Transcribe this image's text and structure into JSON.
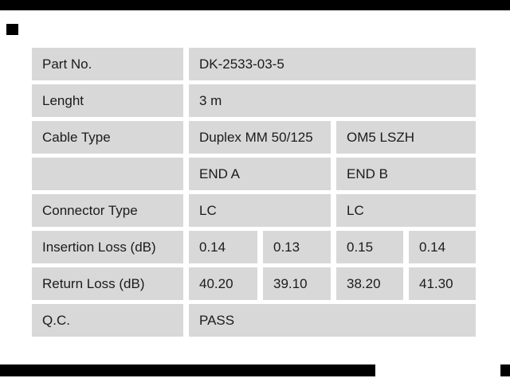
{
  "decor": {
    "bar_color": "#000000"
  },
  "table": {
    "cell_background": "#d8d8d8",
    "gap_background": "#ffffff",
    "text_color": "#1b1b1b",
    "rows": [
      {
        "label": "Part No.",
        "cells": [
          {
            "text": "DK-2533-03-5",
            "span": 4
          }
        ]
      },
      {
        "label": "Lenght",
        "cells": [
          {
            "text": "3 m",
            "span": 4
          }
        ]
      },
      {
        "label": "Cable Type",
        "cells": [
          {
            "text": "Duplex MM 50/125",
            "span": 2
          },
          {
            "text": "OM5 LSZH",
            "span": 2
          }
        ]
      },
      {
        "label": "",
        "cells": [
          {
            "text": "END A",
            "span": 2
          },
          {
            "text": "END B",
            "span": 2
          }
        ]
      },
      {
        "label": "Connector Type",
        "cells": [
          {
            "text": "LC",
            "span": 2
          },
          {
            "text": "LC",
            "span": 2
          }
        ]
      },
      {
        "label": "Insertion Loss (dB)",
        "cells": [
          {
            "text": "0.14"
          },
          {
            "text": "0.13"
          },
          {
            "text": "0.15"
          },
          {
            "text": "0.14"
          }
        ]
      },
      {
        "label": "Return Loss (dB)",
        "cells": [
          {
            "text": "40.20"
          },
          {
            "text": "39.10"
          },
          {
            "text": "38.20"
          },
          {
            "text": "41.30"
          }
        ]
      },
      {
        "label": "Q.C.",
        "cells": [
          {
            "text": "PASS",
            "span": 4
          }
        ]
      }
    ]
  }
}
